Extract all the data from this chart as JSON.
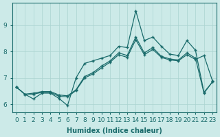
{
  "xlabel": "Humidex (Indice chaleur)",
  "bg_color": "#cceae8",
  "line_color": "#1a6b6b",
  "grid_color": "#aad4d0",
  "x": [
    0,
    1,
    2,
    3,
    4,
    5,
    6,
    7,
    8,
    9,
    10,
    11,
    12,
    13,
    14,
    15,
    16,
    17,
    18,
    19,
    20,
    21,
    22,
    23
  ],
  "y_main": [
    6.65,
    6.38,
    6.2,
    6.42,
    6.42,
    6.22,
    5.95,
    7.0,
    7.55,
    7.65,
    7.75,
    7.85,
    8.2,
    8.15,
    9.55,
    8.42,
    8.55,
    8.2,
    7.9,
    7.85,
    8.42,
    8.05,
    6.45,
    6.85
  ],
  "y_upper": [
    6.65,
    6.38,
    6.42,
    6.48,
    6.48,
    6.35,
    6.32,
    6.55,
    7.05,
    7.2,
    7.45,
    7.65,
    7.95,
    7.85,
    8.55,
    7.95,
    8.15,
    7.82,
    7.72,
    7.68,
    7.95,
    7.75,
    6.42,
    6.85
  ],
  "y_lower": [
    6.65,
    6.38,
    6.38,
    6.45,
    6.45,
    6.3,
    6.28,
    6.52,
    7.0,
    7.15,
    7.38,
    7.6,
    7.88,
    7.78,
    8.45,
    7.88,
    8.08,
    7.78,
    7.68,
    7.65,
    7.88,
    7.7,
    7.85,
    6.88
  ],
  "ylim": [
    5.7,
    9.85
  ],
  "yticks": [
    6,
    7,
    8,
    9
  ],
  "xticks": [
    0,
    1,
    2,
    3,
    4,
    5,
    6,
    7,
    8,
    9,
    10,
    11,
    12,
    13,
    14,
    15,
    16,
    17,
    18,
    19,
    20,
    21,
    22,
    23
  ],
  "axis_fontsize": 7,
  "tick_fontsize": 6.5
}
